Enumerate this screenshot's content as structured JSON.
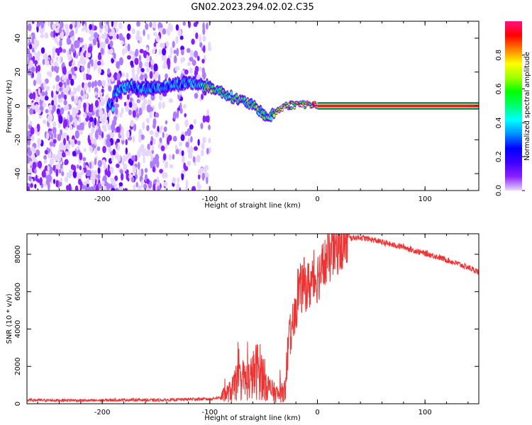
{
  "title": "GN02.2023.294.02.02.C35",
  "chart_data": [
    {
      "type": "heatmap",
      "xlabel": "Height of straight line (km)",
      "ylabel": "Frequency (Hz)",
      "xlim": [
        -270,
        150
      ],
      "ylim": [
        -50,
        50
      ],
      "xticks": [
        -200,
        -100,
        0,
        100
      ],
      "yticks": [
        -40,
        -20,
        0,
        20,
        40
      ],
      "colorbar": {
        "label": "Normalized spectral amplitude",
        "range": [
          0.0,
          1.0
        ],
        "ticks": [
          0.0,
          0.2,
          0.4,
          0.6,
          0.8
        ],
        "colormap": [
          "#e8d8ff",
          "#8a1fff",
          "#3b00ff",
          "#0000ff",
          "#0090ff",
          "#00ffff",
          "#00ff70",
          "#00ff00",
          "#a0ff00",
          "#ffff00",
          "#ff8000",
          "#ff0000",
          "#ff1080"
        ]
      },
      "signal_track": [
        {
          "x": -190,
          "f": 8
        },
        {
          "x": -175,
          "f": 12
        },
        {
          "x": -160,
          "f": 10
        },
        {
          "x": -140,
          "f": 12
        },
        {
          "x": -120,
          "f": 14
        },
        {
          "x": -105,
          "f": 12
        },
        {
          "x": -95,
          "f": 10
        },
        {
          "x": -85,
          "f": 7
        },
        {
          "x": -75,
          "f": 4
        },
        {
          "x": -65,
          "f": 2
        },
        {
          "x": -55,
          "f": -2
        },
        {
          "x": -50,
          "f": -5
        },
        {
          "x": -45,
          "f": -7
        },
        {
          "x": -38,
          "f": -3
        },
        {
          "x": -30,
          "f": 0
        },
        {
          "x": -20,
          "f": 1
        },
        {
          "x": -10,
          "f": 1
        },
        {
          "x": 0,
          "f": 0
        },
        {
          "x": 150,
          "f": 0
        }
      ]
    },
    {
      "type": "line",
      "xlabel": "Height of straight line (km)",
      "ylabel": "SNR (10 * v/v)",
      "xlim": [
        -270,
        150
      ],
      "ylim": [
        0,
        9100
      ],
      "xticks": [
        -200,
        -100,
        0,
        100
      ],
      "yticks": [
        0,
        2000,
        4000,
        6000,
        8000
      ],
      "color": "#ee3333",
      "series": [
        {
          "x": [
            -270,
            -250,
            -230,
            -210,
            -190,
            -170,
            -150,
            -130,
            -115,
            -100,
            -90,
            -80,
            -75,
            -70,
            -65,
            -60,
            -55,
            -50,
            -45,
            -40,
            -35,
            -30,
            -28,
            -25,
            -22,
            -20,
            -18,
            -15,
            -12,
            -10,
            -5,
            0,
            5,
            10,
            15,
            20,
            25,
            30,
            35,
            40,
            50,
            60,
            70,
            80,
            90,
            100,
            110,
            120,
            130,
            140,
            150
          ],
          "y": [
            200,
            180,
            190,
            170,
            200,
            210,
            190,
            220,
            250,
            250,
            350,
            700,
            1100,
            1300,
            1200,
            1500,
            1900,
            1400,
            800,
            600,
            450,
            800,
            2500,
            3800,
            4300,
            5000,
            6200,
            6100,
            6500,
            6200,
            6500,
            6800,
            7300,
            7800,
            8200,
            8500,
            8700,
            8850,
            8900,
            8900,
            8800,
            8650,
            8500,
            8400,
            8200,
            8050,
            7900,
            7700,
            7500,
            7300,
            7050
          ]
        }
      ]
    }
  ]
}
